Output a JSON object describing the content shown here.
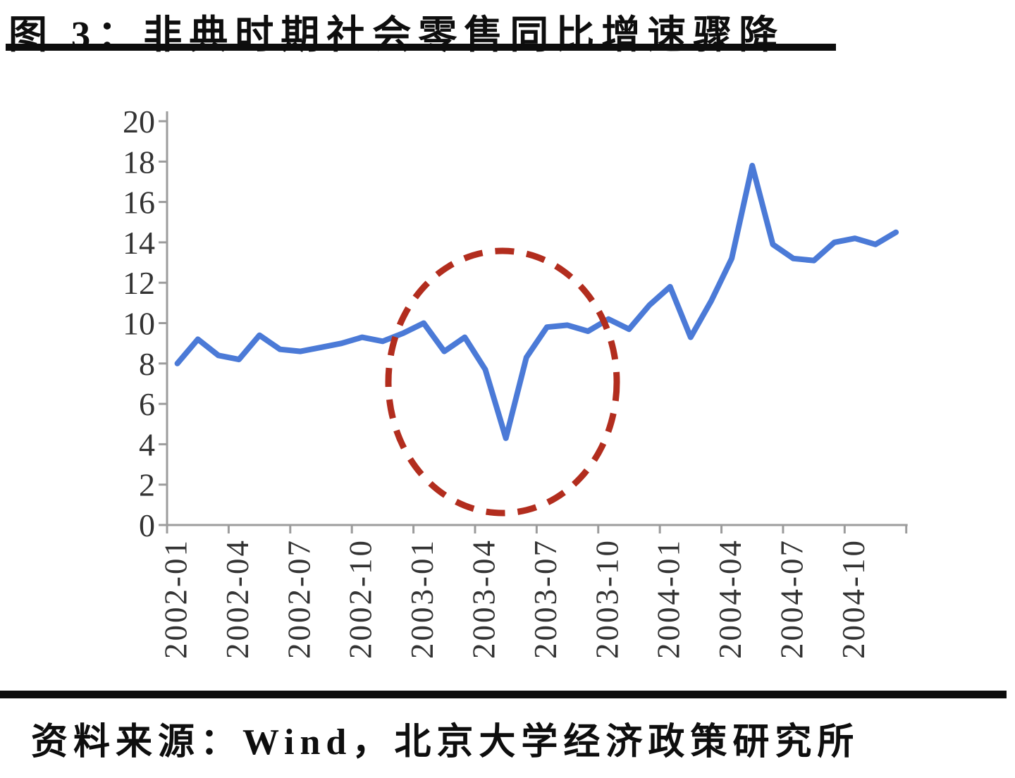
{
  "title": "图 3：非典时期社会零售同比增速骤降",
  "source_note": "资料来源：Wind，北京大学经济政策研究所",
  "chart_data": {
    "type": "line",
    "categories": [
      "2002-01",
      "2002-02",
      "2002-03",
      "2002-04",
      "2002-05",
      "2002-06",
      "2002-07",
      "2002-08",
      "2002-09",
      "2002-10",
      "2002-11",
      "2002-12",
      "2003-01",
      "2003-02",
      "2003-03",
      "2003-04",
      "2003-05",
      "2003-06",
      "2003-07",
      "2003-08",
      "2003-09",
      "2003-10",
      "2003-11",
      "2003-12",
      "2004-01",
      "2004-02",
      "2004-03",
      "2004-04",
      "2004-05",
      "2004-06",
      "2004-07",
      "2004-08",
      "2004-09",
      "2004-10",
      "2004-11",
      "2004-12"
    ],
    "values": [
      8.0,
      9.2,
      8.4,
      8.2,
      9.4,
      8.7,
      8.6,
      8.8,
      9.0,
      9.3,
      9.1,
      9.5,
      10.0,
      8.6,
      9.3,
      7.7,
      4.3,
      8.3,
      9.8,
      9.9,
      9.6,
      10.2,
      9.7,
      10.9,
      11.8,
      9.3,
      11.1,
      13.2,
      17.8,
      13.9,
      13.2,
      13.1,
      14.0,
      14.2,
      13.9,
      14.5
    ],
    "x_tick_labels": [
      "2002-01",
      "2002-04",
      "2002-07",
      "2002-10",
      "2003-01",
      "2003-04",
      "2003-07",
      "2003-10",
      "2004-01",
      "2004-04",
      "2004-07",
      "2004-10"
    ],
    "y_ticks": [
      0,
      2,
      4,
      6,
      8,
      10,
      12,
      14,
      16,
      18,
      20
    ],
    "ylim": [
      0,
      20
    ],
    "grid": "off",
    "legend": "none",
    "line_color": "#4b7ad7",
    "axis_color": "#9c9c9c",
    "tick_label_color": "#333333",
    "annotation": {
      "shape": "dashed-ellipse",
      "color": "#b22d1e",
      "circled_region": "2003 SARS dip (low point 2003-05 = 4.3)"
    }
  }
}
